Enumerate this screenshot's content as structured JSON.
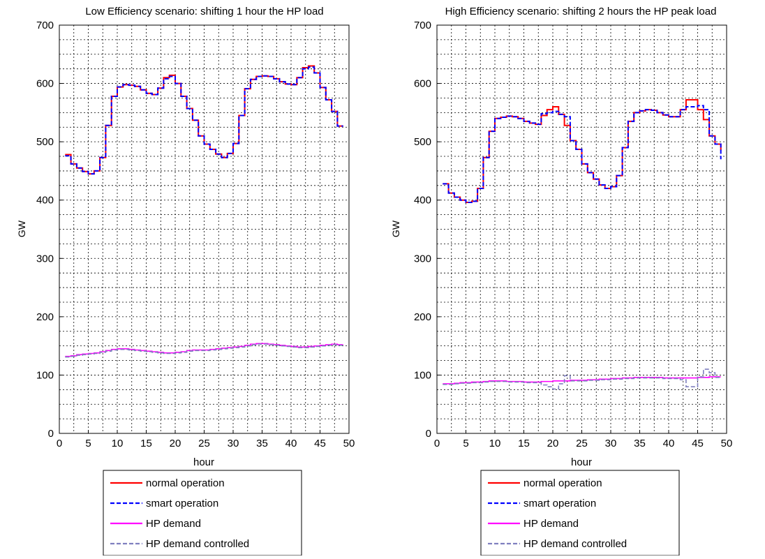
{
  "legend_entries": [
    {
      "label": "normal operation",
      "color": "#ff0000",
      "dash": "solid"
    },
    {
      "label": "smart operation",
      "color": "#0000ff",
      "dash": "dashed"
    },
    {
      "label": "HP demand",
      "color": "#ff00ff",
      "dash": "solid"
    },
    {
      "label": "HP demand controlled",
      "color": "#7f7fbf",
      "dash": "dashed"
    }
  ],
  "chart_data": [
    {
      "type": "line",
      "title": "Low Efficiency scenario: shifting 1 hour the HP load",
      "xlabel": "hour",
      "ylabel": "GW",
      "xlim": [
        0,
        50
      ],
      "ylim": [
        0,
        700
      ],
      "xticks": [
        0,
        5,
        10,
        15,
        20,
        25,
        30,
        35,
        40,
        45,
        50
      ],
      "yticks": [
        0,
        100,
        200,
        300,
        400,
        500,
        600,
        700
      ],
      "grid": true,
      "step": true,
      "legend_position": "below",
      "x": [
        1,
        2,
        3,
        4,
        5,
        6,
        7,
        8,
        9,
        10,
        11,
        12,
        13,
        14,
        15,
        16,
        17,
        18,
        19,
        20,
        21,
        22,
        23,
        24,
        25,
        26,
        27,
        28,
        29,
        30,
        31,
        32,
        33,
        34,
        35,
        36,
        37,
        38,
        39,
        40,
        41,
        42,
        43,
        44,
        45,
        46,
        47,
        48,
        49
      ],
      "series": [
        {
          "name": "normal operation",
          "values": [
            478,
            462,
            455,
            449,
            445,
            450,
            473,
            528,
            578,
            594,
            598,
            597,
            595,
            589,
            583,
            581,
            592,
            610,
            614,
            600,
            578,
            557,
            537,
            510,
            496,
            487,
            479,
            473,
            480,
            497,
            545,
            591,
            607,
            612,
            613,
            612,
            608,
            603,
            599,
            598,
            610,
            627,
            630,
            618,
            593,
            572,
            552,
            527,
            527
          ]
        },
        {
          "name": "smart operation",
          "values": [
            476,
            462,
            455,
            449,
            445,
            450,
            473,
            528,
            578,
            594,
            598,
            597,
            595,
            589,
            583,
            581,
            592,
            608,
            612,
            600,
            578,
            557,
            537,
            510,
            496,
            487,
            479,
            473,
            480,
            497,
            545,
            591,
            607,
            612,
            613,
            612,
            608,
            603,
            599,
            598,
            610,
            625,
            628,
            618,
            593,
            572,
            552,
            527,
            527
          ]
        },
        {
          "name": "HP demand",
          "values": [
            132,
            133,
            135,
            136,
            137,
            138,
            140,
            142,
            144,
            145,
            145,
            144,
            143,
            142,
            141,
            140,
            139,
            138,
            138,
            139,
            140,
            142,
            143,
            143,
            143,
            144,
            145,
            146,
            147,
            148,
            149,
            151,
            153,
            154,
            154,
            153,
            152,
            151,
            150,
            149,
            148,
            148,
            149,
            150,
            151,
            152,
            153,
            152,
            152
          ]
        },
        {
          "name": "HP demand controlled",
          "values": [
            131,
            132,
            134,
            135,
            136,
            137,
            139,
            141,
            143,
            144,
            144,
            143,
            142,
            141,
            140,
            139,
            138,
            137,
            137,
            138,
            139,
            141,
            142,
            142,
            142,
            143,
            144,
            145,
            146,
            147,
            148,
            150,
            152,
            153,
            153,
            152,
            151,
            150,
            149,
            148,
            147,
            147,
            148,
            149,
            150,
            151,
            152,
            151,
            151
          ]
        }
      ]
    },
    {
      "type": "line",
      "title": "High Efficiency scenario: shifting 2 hours the HP peak load",
      "xlabel": "hour",
      "ylabel": "GW",
      "xlim": [
        0,
        50
      ],
      "ylim": [
        0,
        700
      ],
      "xticks": [
        0,
        5,
        10,
        15,
        20,
        25,
        30,
        35,
        40,
        45,
        50
      ],
      "yticks": [
        0,
        100,
        200,
        300,
        400,
        500,
        600,
        700
      ],
      "grid": true,
      "step": true,
      "legend_position": "below",
      "x": [
        1,
        2,
        3,
        4,
        5,
        6,
        7,
        8,
        9,
        10,
        11,
        12,
        13,
        14,
        15,
        16,
        17,
        18,
        19,
        20,
        21,
        22,
        23,
        24,
        25,
        26,
        27,
        28,
        29,
        30,
        31,
        32,
        33,
        34,
        35,
        36,
        37,
        38,
        39,
        40,
        41,
        42,
        43,
        44,
        45,
        46,
        47,
        48,
        49
      ],
      "series": [
        {
          "name": "normal operation",
          "values": [
            428,
            412,
            405,
            400,
            396,
            398,
            420,
            473,
            518,
            540,
            542,
            544,
            543,
            540,
            535,
            532,
            530,
            545,
            555,
            560,
            547,
            528,
            502,
            487,
            462,
            447,
            436,
            426,
            420,
            423,
            442,
            490,
            535,
            550,
            553,
            555,
            554,
            550,
            546,
            543,
            543,
            555,
            572,
            572,
            555,
            538,
            510,
            496,
            485
          ]
        },
        {
          "name": "smart operation",
          "values": [
            428,
            412,
            405,
            400,
            396,
            398,
            420,
            473,
            518,
            540,
            542,
            544,
            543,
            540,
            535,
            532,
            530,
            548,
            550,
            552,
            547,
            543,
            502,
            487,
            462,
            447,
            436,
            426,
            420,
            423,
            442,
            490,
            535,
            550,
            553,
            555,
            554,
            550,
            546,
            543,
            543,
            555,
            560,
            560,
            562,
            555,
            510,
            496,
            470
          ]
        },
        {
          "name": "HP demand",
          "values": [
            85,
            85,
            86,
            87,
            87,
            88,
            88,
            89,
            90,
            90,
            90,
            89,
            89,
            89,
            88,
            88,
            88,
            89,
            89,
            90,
            90,
            90,
            91,
            91,
            91,
            92,
            92,
            93,
            93,
            94,
            94,
            95,
            95,
            96,
            96,
            96,
            96,
            96,
            95,
            95,
            95,
            95,
            95,
            95,
            96,
            96,
            97,
            97,
            97
          ]
        },
        {
          "name": "HP demand controlled",
          "values": [
            84,
            84,
            85,
            86,
            86,
            87,
            87,
            88,
            89,
            89,
            89,
            88,
            88,
            88,
            87,
            87,
            87,
            83,
            80,
            76,
            85,
            99,
            90,
            90,
            90,
            91,
            91,
            92,
            92,
            93,
            93,
            94,
            94,
            95,
            95,
            95,
            95,
            95,
            94,
            94,
            94,
            92,
            80,
            80,
            97,
            110,
            104,
            96,
            96
          ]
        }
      ]
    }
  ]
}
